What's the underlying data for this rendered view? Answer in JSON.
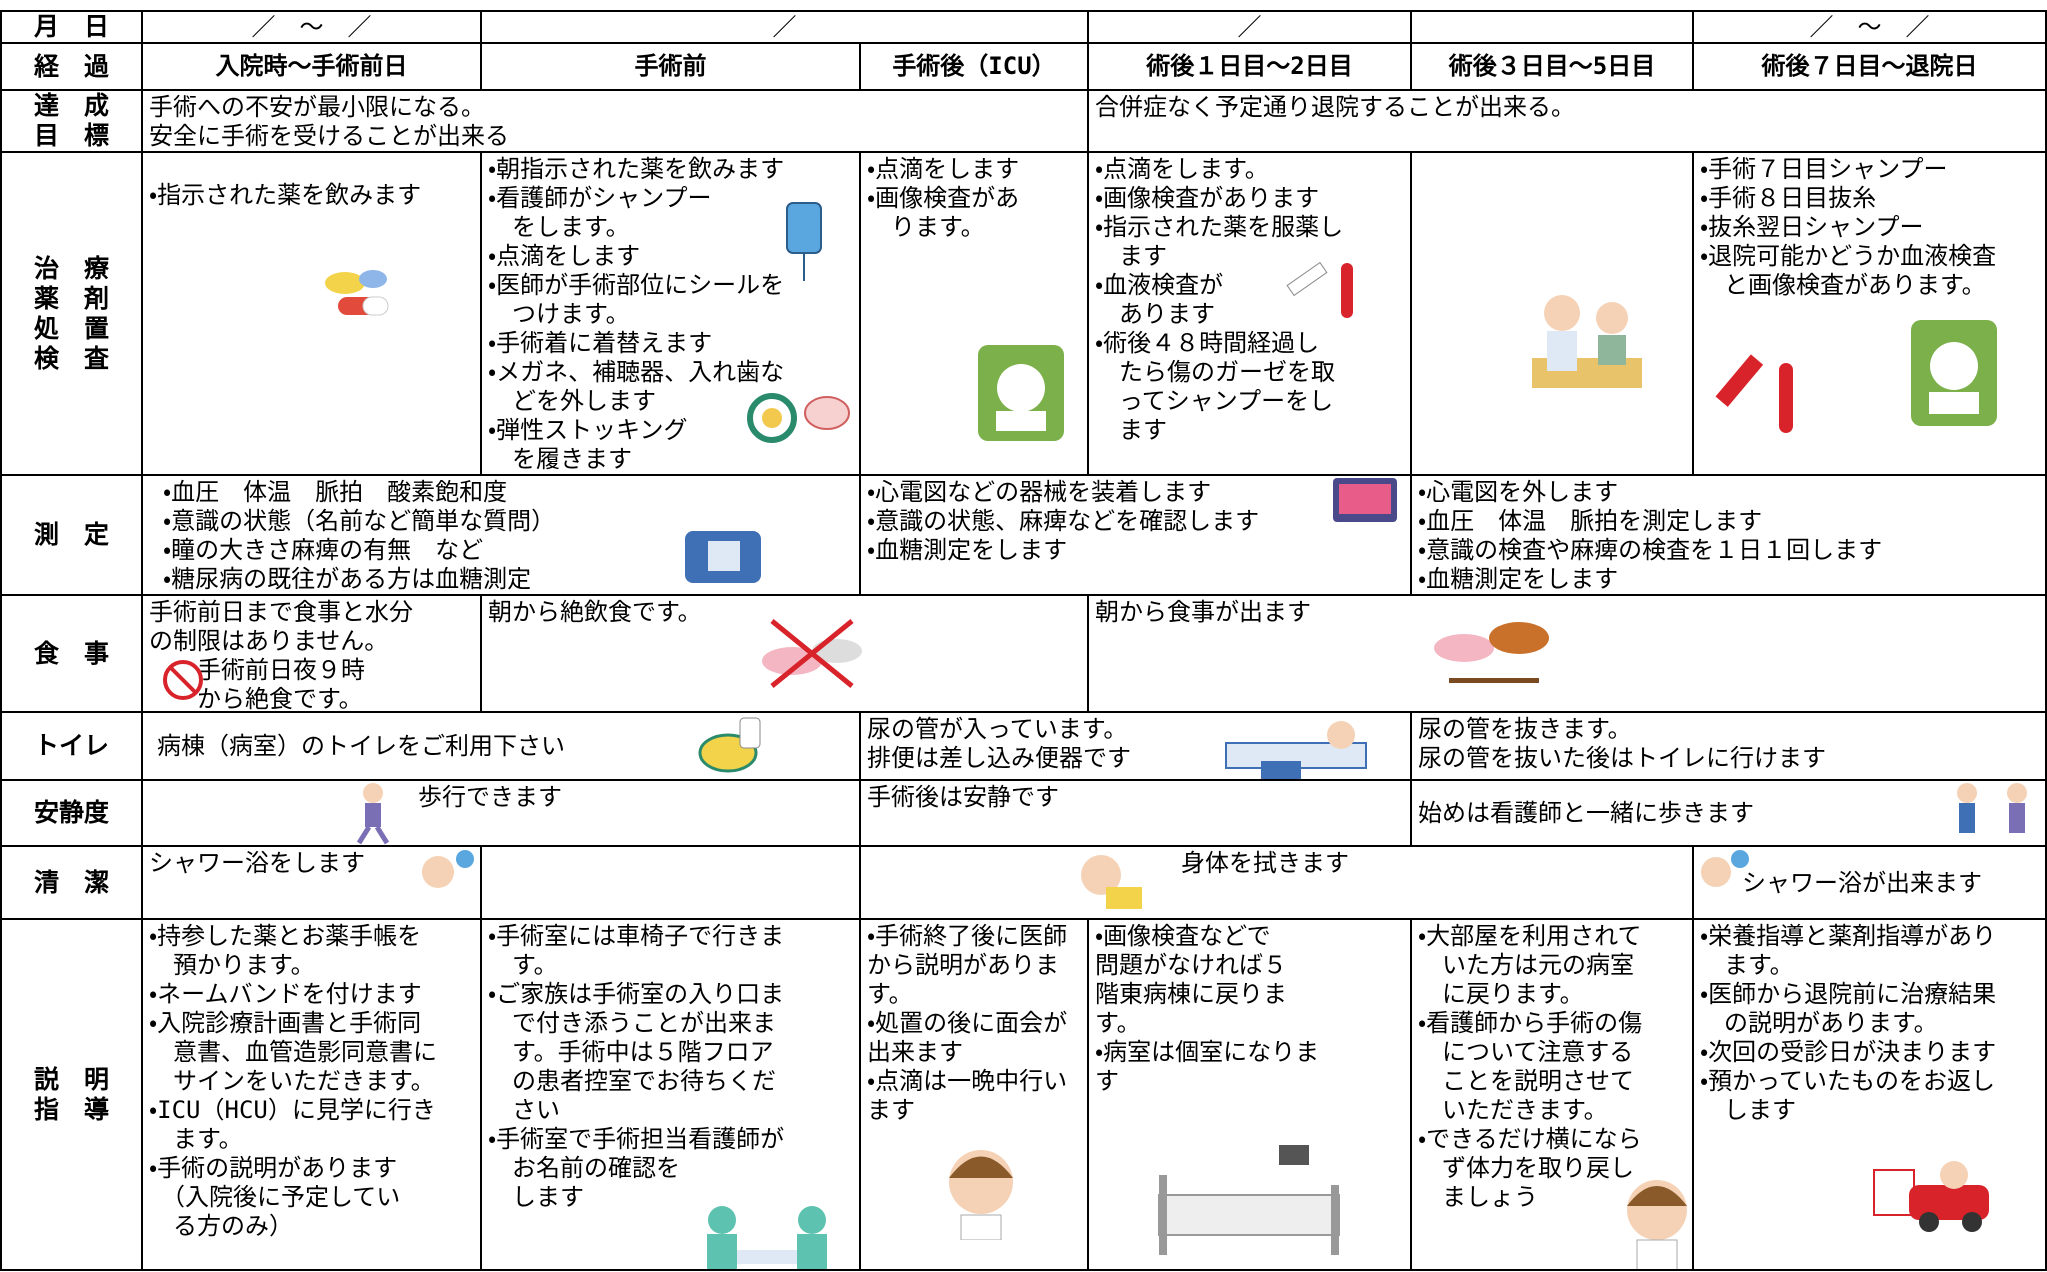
{
  "date_row": {
    "label": "月　日",
    "cells": [
      "／　～　／",
      "／",
      "／",
      "／　～　／"
    ]
  },
  "stage_row": {
    "label": "経　過",
    "cells": [
      "入院時～手術前日",
      "手術前",
      "手術後（ICU）",
      "術後１日目～2日目",
      "術後３日目～5日目",
      "術後７日目～退院日"
    ]
  },
  "rows": [
    {
      "label": "達　成\n目　標",
      "cells": [
        "手術への不安が最小限になる。\n安全に手術を受けることが出来る",
        "合併症なく予定通り退院することが出来る。"
      ]
    },
    {
      "label": "治　療\n薬　剤\n処　置\n検　査",
      "cells": [
        "・指示された薬を飲みます",
        "・朝指示された薬を飲みます\n・看護師がシャンプー\n　をします。\n・点滴をします\n・医師が手術部位にシールを\n　つけます。\n・手術着に着替えます\n・メガネ、補聴器、入れ歯な\n　どを外します\n・弾性ストッキング\n　を履きます",
        "・点滴をします\n・画像検査があ\n　ります。",
        "・点滴をします。\n・画像検査があります\n・指示された薬を服薬し\n　ます\n・血液検査が\n　あります\n・術後４８時間経過し\n　たら傷のガーゼを取\n　ってシャンプーをし\n　ます",
        "・手術７日目シャンプー\n・手術８日目抜糸\n・抜糸翌日シャンプー\n・退院可能かどうか血液検査\n　と画像検査があります。"
      ]
    },
    {
      "label": "測　定",
      "cells": [
        "・血圧　体温　脈拍　酸素飽和度\n・意識の状態（名前など簡単な質問）\n・瞳の大きさ麻痺の有無　など\n・糖尿病の既往がある方は血糖測定",
        "・心電図などの器械を装着します\n・意識の状態、麻痺などを確認します\n・血糖測定をします",
        "・心電図を外します\n・血圧　体温　脈拍を測定します\n・意識の検査や麻痺の検査を１日１回します\n・血糖測定をします"
      ]
    },
    {
      "label": "食　事",
      "cells": [
        "手術前日まで食事と水分\nの制限はありません。\n　　手術前日夜９時\n　　から絶食です。",
        "朝から絶飲食です。",
        "朝から食事が出ます"
      ]
    },
    {
      "label": "トイレ",
      "cells": [
        "病棟（病室）のトイレをご利用下さい",
        "尿の管が入っています。\n排便は差し込み便器です",
        "尿の管を抜きます。\n尿の管を抜いた後はトイレに行けます"
      ]
    },
    {
      "label": "安静度",
      "cells": [
        "歩行できます",
        "手術後は安静です",
        "始めは看護師と一緒に歩きます"
      ]
    },
    {
      "label": "清　潔",
      "cells": [
        "シャワー浴をします",
        "身体を拭きます",
        "シャワー浴が出来ます"
      ]
    },
    {
      "label": "説　明\n指　導",
      "cells": [
        "・持参した薬とお薬手帳を\n　預かります。\n・ネームバンドを付けます\n・入院診療計画書と手術同\n　意書、血管造影同意書に\n　サインをいただきます。\n・ICU（HCU）に見学に行き\n　ます。\n・手術の説明があります\n　（入院後に予定してい\n　る方のみ）",
        "・手術室には車椅子で行きま\n　す。\n・ご家族は手術室の入り口ま\n　で付き添うことが出来ま\n　す。手術中は５階フロア\n　の患者控室でお待ちくだ\n　さい\n・手術室で手術担当看護師が\n　お名前の確認を\n　します",
        "・手術終了後に医師\nから説明がありま\nす。\n・処置の後に面会が\n出来ます\n・点滴は一晩中行い\nます",
        "・画像検査などで\n問題がなければ５\n階東病棟に戻りま\nす。\n・病室は個室になりま\nす",
        "・大部屋を利用されて\n　いた方は元の病室\n　に戻ります。\n・看護師から手術の傷\n　について注意する\n　ことを説明させて\n　いただきます。\n・できるだけ横になら\n　ず体力を取り戻し\n　ましょう",
        "・栄養指導と薬剤指導があり\n　ます。\n・医師から退院前に治療結果\n　の説明があります。\n・次回の受診日が決まります\n・預かっていたものをお返し\n　します"
      ]
    }
  ]
}
